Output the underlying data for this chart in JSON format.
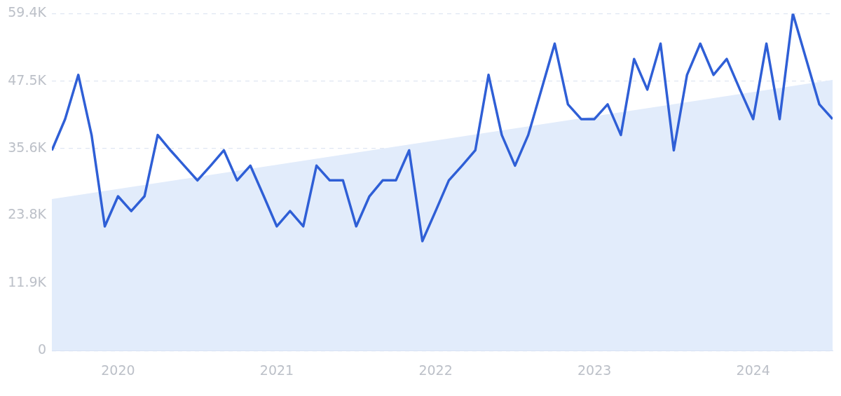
{
  "chart_data": {
    "type": "line",
    "x": [
      "2019-08",
      "2019-09",
      "2019-10",
      "2019-11",
      "2019-12",
      "2020-01",
      "2020-02",
      "2020-03",
      "2020-04",
      "2020-05",
      "2020-06",
      "2020-07",
      "2020-08",
      "2020-09",
      "2020-10",
      "2020-11",
      "2020-12",
      "2021-01",
      "2021-02",
      "2021-03",
      "2021-04",
      "2021-05",
      "2021-06",
      "2021-07",
      "2021-08",
      "2021-09",
      "2021-10",
      "2021-11",
      "2021-12",
      "2022-01",
      "2022-02",
      "2022-03",
      "2022-04",
      "2022-05",
      "2022-06",
      "2022-07",
      "2022-08",
      "2022-09",
      "2022-10",
      "2022-11",
      "2022-12",
      "2023-01",
      "2023-02",
      "2023-03",
      "2023-04",
      "2023-05",
      "2023-06",
      "2023-07",
      "2023-08",
      "2023-09",
      "2023-10",
      "2023-11",
      "2023-12",
      "2024-01",
      "2024-02",
      "2024-03",
      "2024-04",
      "2024-05",
      "2024-06",
      "2024-07"
    ],
    "series": [
      {
        "type": "area",
        "color": "#e2ecfb",
        "x": [
          "2019-08",
          "2024-07"
        ],
        "values": [
          26700,
          47700
        ]
      },
      {
        "color": "#2f5fd6",
        "values": [
          35300,
          40800,
          48600,
          38000,
          21900,
          27200,
          24600,
          27200,
          38000,
          35200,
          32600,
          30000,
          32600,
          35300,
          30000,
          32600,
          27300,
          21900,
          24600,
          21900,
          32600,
          30000,
          30000,
          21900,
          27200,
          30000,
          30000,
          35300,
          19300,
          24600,
          30000,
          32600,
          35300,
          48600,
          38000,
          32600,
          38000,
          46000,
          54100,
          43400,
          40800,
          40800,
          43400,
          38000,
          51400,
          46000,
          54100,
          35300,
          48600,
          54100,
          48600,
          51400,
          46000,
          40800,
          54100,
          40800,
          59400,
          51400,
          43400,
          40800
        ]
      }
    ],
    "xlim": [
      "2019-08",
      "2024-07"
    ],
    "xticks": [
      "2020",
      "2021",
      "2022",
      "2023",
      "2024"
    ],
    "ylim": [
      0,
      59400
    ],
    "yticks": [
      0,
      {
        "value": 11900,
        "label": "11.9K"
      },
      {
        "value": 23800,
        "label": "23.8K"
      },
      {
        "value": 35600,
        "label": "35.6K"
      },
      {
        "value": 47500,
        "label": "47.5K"
      },
      {
        "value": 59400,
        "label": "59.4K"
      }
    ],
    "grid": "y",
    "marker": "none",
    "line_style": "solid"
  }
}
